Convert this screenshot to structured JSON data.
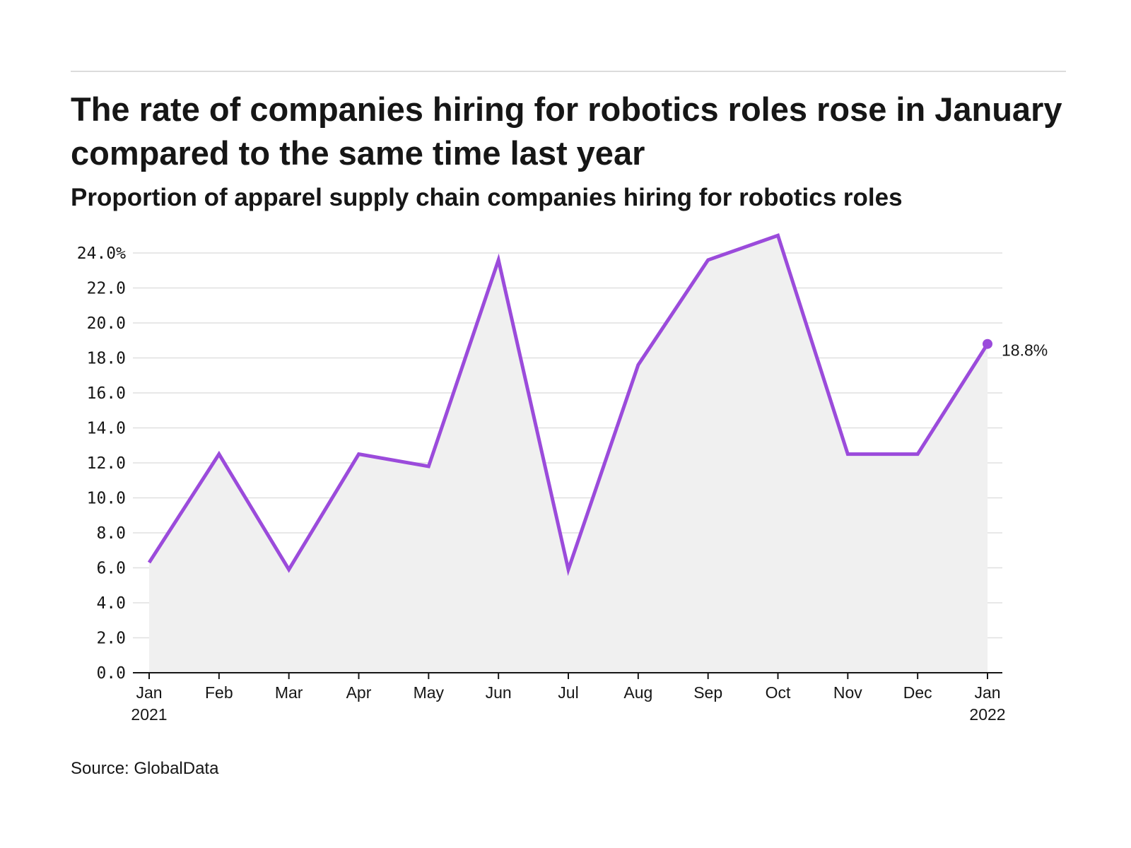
{
  "header": {
    "title": "The rate of companies hiring for robotics roles rose in January compared to the same time last year",
    "subtitle": "Proportion of apparel supply chain companies hiring for robotics roles"
  },
  "footer": {
    "source": "Source: GlobalData"
  },
  "chart_data": {
    "type": "area",
    "title": "The rate of companies hiring for robotics roles rose in January compared to the same time last year",
    "subtitle": "Proportion of apparel supply chain companies hiring for robotics roles",
    "xlabel": "",
    "ylabel": "",
    "x": [
      "Jan 2021",
      "Feb",
      "Mar",
      "Apr",
      "May",
      "Jun",
      "Jul",
      "Aug",
      "Sep",
      "Oct",
      "Nov",
      "Dec",
      "Jan 2022"
    ],
    "x_tick_labels": [
      {
        "line1": "Jan",
        "line2": "2021"
      },
      {
        "line1": "Feb",
        "line2": ""
      },
      {
        "line1": "Mar",
        "line2": ""
      },
      {
        "line1": "Apr",
        "line2": ""
      },
      {
        "line1": "May",
        "line2": ""
      },
      {
        "line1": "Jun",
        "line2": ""
      },
      {
        "line1": "Jul",
        "line2": ""
      },
      {
        "line1": "Aug",
        "line2": ""
      },
      {
        "line1": "Sep",
        "line2": ""
      },
      {
        "line1": "Oct",
        "line2": ""
      },
      {
        "line1": "Nov",
        "line2": ""
      },
      {
        "line1": "Dec",
        "line2": ""
      },
      {
        "line1": "Jan",
        "line2": "2022"
      }
    ],
    "series": [
      {
        "values": [
          6.3,
          12.5,
          5.9,
          12.5,
          11.8,
          23.6,
          5.9,
          17.6,
          23.6,
          25.0,
          12.5,
          12.5,
          18.8
        ],
        "color": "#9b4bdb"
      }
    ],
    "end_label": "18.8%",
    "y_ticks": [
      0,
      2,
      4,
      6,
      8,
      10,
      12,
      14,
      16,
      18,
      20,
      22,
      24
    ],
    "y_tick_labels": [
      "0.0",
      "2.0",
      "4.0",
      "6.0",
      "8.0",
      "10.0",
      "12.0",
      "14.0",
      "16.0",
      "18.0",
      "20.0",
      "22.0",
      "24.0%"
    ],
    "ylim": [
      0,
      25
    ],
    "grid": true,
    "area_fill": "#f0f0f0",
    "gridline_color": "#e0e0e0",
    "axis_color": "#161616"
  }
}
